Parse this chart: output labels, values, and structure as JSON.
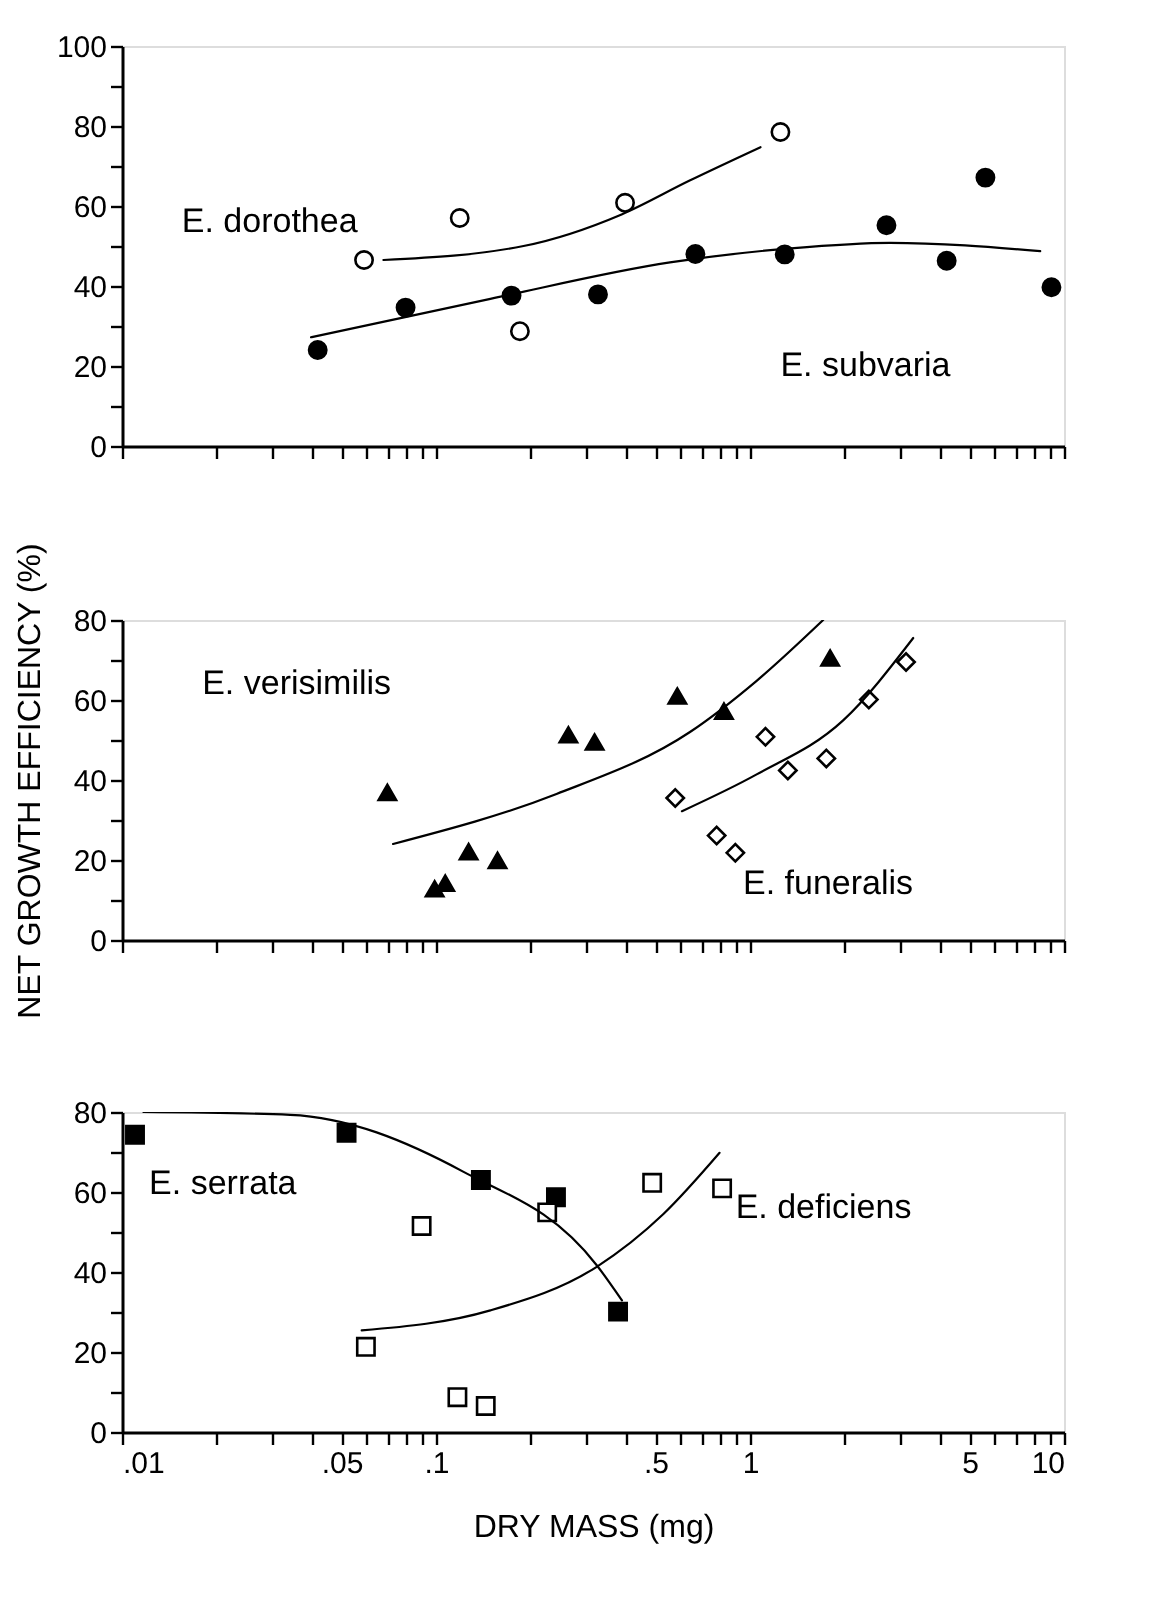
{
  "chart_data": [
    {
      "type": "scatter",
      "log": "x",
      "xlim": [
        0.01,
        10
      ],
      "ylim": [
        0,
        100
      ],
      "tick_labels": "y",
      "grid": false,
      "xticks": [
        {
          "value": 0.01,
          "label": null
        },
        {
          "value": 0.02,
          "label": null
        },
        {
          "value": 0.03,
          "label": null
        },
        {
          "value": 0.04,
          "label": null
        },
        {
          "value": 0.05,
          "label": null
        },
        {
          "value": 0.06,
          "label": null
        },
        {
          "value": 0.07,
          "label": null
        },
        {
          "value": 0.08,
          "label": null
        },
        {
          "value": 0.09,
          "label": null
        },
        {
          "value": 0.1,
          "label": null
        },
        {
          "value": 0.2,
          "label": null
        },
        {
          "value": 0.3,
          "label": null
        },
        {
          "value": 0.4,
          "label": null
        },
        {
          "value": 0.5,
          "label": null
        },
        {
          "value": 0.6,
          "label": null
        },
        {
          "value": 0.7,
          "label": null
        },
        {
          "value": 0.8,
          "label": null
        },
        {
          "value": 0.9,
          "label": null
        },
        {
          "value": 1,
          "label": null
        },
        {
          "value": 2,
          "label": null
        },
        {
          "value": 3,
          "label": null
        },
        {
          "value": 4,
          "label": null
        },
        {
          "value": 5,
          "label": null
        },
        {
          "value": 6,
          "label": null
        },
        {
          "value": 7,
          "label": null
        },
        {
          "value": 8,
          "label": null
        },
        {
          "value": 9,
          "label": null
        },
        {
          "value": 10,
          "label": null
        }
      ],
      "yticks": [
        0,
        {
          "value": 10,
          "label": null
        },
        20,
        {
          "value": 30,
          "label": null
        },
        40,
        {
          "value": 50,
          "label": null
        },
        60,
        {
          "value": 70,
          "label": null
        },
        80,
        {
          "value": 90,
          "label": null
        },
        100
      ],
      "series": [
        {
          "name": "E. dorothea",
          "type": "scatter",
          "marker": "circle",
          "color": "#ffffff",
          "x": [
            0.059,
            0.119,
            0.185,
            0.4,
            1.25
          ],
          "values": [
            46.5,
            57,
            28.7,
            60.8,
            78.5
          ]
        },
        {
          "name": "E. subvaria",
          "type": "scatter",
          "marker": "circle",
          "color": "#000000",
          "x": [
            0.042,
            0.08,
            0.174,
            0.328,
            0.67,
            1.29,
            2.72,
            4.23,
            5.62,
            9.12
          ],
          "values": [
            24,
            34.6,
            37.6,
            37.9,
            48,
            47.9,
            55.2,
            46.3,
            67.1,
            39.7
          ]
        },
        {
          "type": "line",
          "marker": "none",
          "color": "#000000",
          "x": [
            0.068,
            0.19,
            0.39,
            0.64,
            1.08
          ],
          "values": [
            46.5,
            50,
            57.9,
            66.3,
            74.7
          ]
        },
        {
          "type": "line",
          "marker": "none",
          "color": "#000000",
          "x": [
            0.04,
            0.149,
            0.556,
            1.34,
            2.79,
            8.4
          ],
          "values": [
            27.2,
            36.8,
            45.9,
            49.4,
            50.8,
            48.7
          ]
        }
      ]
    },
    {
      "type": "scatter",
      "log": "x",
      "xlim": [
        0.01,
        10
      ],
      "ylim": [
        0,
        80
      ],
      "tick_labels": "y",
      "grid": false,
      "ylabel": "NET GROWTH EFFICIENCY (%)",
      "xticks": [
        {
          "value": 0.01,
          "label": null
        },
        {
          "value": 0.02,
          "label": null
        },
        {
          "value": 0.03,
          "label": null
        },
        {
          "value": 0.04,
          "label": null
        },
        {
          "value": 0.05,
          "label": null
        },
        {
          "value": 0.06,
          "label": null
        },
        {
          "value": 0.07,
          "label": null
        },
        {
          "value": 0.08,
          "label": null
        },
        {
          "value": 0.09,
          "label": null
        },
        {
          "value": 0.1,
          "label": null
        },
        {
          "value": 0.2,
          "label": null
        },
        {
          "value": 0.3,
          "label": null
        },
        {
          "value": 0.4,
          "label": null
        },
        {
          "value": 0.5,
          "label": null
        },
        {
          "value": 0.6,
          "label": null
        },
        {
          "value": 0.7,
          "label": null
        },
        {
          "value": 0.8,
          "label": null
        },
        {
          "value": 0.9,
          "label": null
        },
        {
          "value": 1,
          "label": null
        },
        {
          "value": 2,
          "label": null
        },
        {
          "value": 3,
          "label": null
        },
        {
          "value": 4,
          "label": null
        },
        {
          "value": 5,
          "label": null
        },
        {
          "value": 6,
          "label": null
        },
        {
          "value": 7,
          "label": null
        },
        {
          "value": 8,
          "label": null
        },
        {
          "value": 9,
          "label": null
        },
        {
          "value": 10,
          "label": null
        }
      ],
      "yticks": [
        0,
        {
          "value": 10,
          "label": null
        },
        20,
        {
          "value": 30,
          "label": null
        },
        40,
        {
          "value": 50,
          "label": null
        },
        60,
        {
          "value": 70,
          "label": null
        },
        80
      ],
      "series": [
        {
          "name": "E. verisimilis",
          "type": "scatter",
          "marker": "triangle",
          "color": "#000000",
          "x": [
            0.07,
            0.099,
            0.107,
            0.127,
            0.157,
            0.264,
            0.32,
            0.587,
            0.826,
            1.8
          ],
          "values": [
            36.9,
            12.8,
            14.2,
            22.1,
            19.9,
            51.3,
            49.5,
            61,
            57.2,
            70.5
          ]
        },
        {
          "name": "E. funeralis",
          "type": "scatter",
          "marker": "diamond",
          "color": "#ffffff",
          "x": [
            0.578,
            0.783,
            0.898,
            1.12,
            1.32,
            1.75,
            2.39,
            3.14
          ],
          "values": [
            35.5,
            26.1,
            21.8,
            50.8,
            42.4,
            45.4,
            60.1,
            69.5
          ]
        },
        {
          "type": "line",
          "marker": "none",
          "color": "#000000",
          "x": [
            0.073,
            0.242,
            0.644,
            1.05,
            1.71
          ],
          "values": [
            24,
            36.5,
            52,
            64.8,
            80
          ]
        },
        {
          "type": "line",
          "marker": "none",
          "color": "#000000",
          "x": [
            0.607,
            1.05,
            1.98,
            3.31
          ],
          "values": [
            32.2,
            41.4,
            54.9,
            75.5
          ]
        }
      ]
    },
    {
      "type": "scatter",
      "log": "x",
      "xlim": [
        0.01,
        10
      ],
      "ylim": [
        0,
        80
      ],
      "grid": false,
      "xlabel": "DRY MASS (mg)",
      "xticks": [
        {
          "value": 0.01,
          "label": ".01"
        },
        {
          "value": 0.02,
          "label": null
        },
        {
          "value": 0.03,
          "label": null
        },
        {
          "value": 0.04,
          "label": null
        },
        {
          "value": 0.05,
          "label": ".05"
        },
        {
          "value": 0.06,
          "label": null
        },
        {
          "value": 0.07,
          "label": null
        },
        {
          "value": 0.08,
          "label": null
        },
        {
          "value": 0.09,
          "label": null
        },
        {
          "value": 0.1,
          "label": ".1"
        },
        {
          "value": 0.2,
          "label": null
        },
        {
          "value": 0.3,
          "label": null
        },
        {
          "value": 0.4,
          "label": null
        },
        {
          "value": 0.5,
          "label": ".5"
        },
        {
          "value": 0.6,
          "label": null
        },
        {
          "value": 0.7,
          "label": null
        },
        {
          "value": 0.8,
          "label": null
        },
        {
          "value": 0.9,
          "label": null
        },
        1,
        {
          "value": 2,
          "label": null
        },
        {
          "value": 3,
          "label": null
        },
        {
          "value": 4,
          "label": null
        },
        5,
        {
          "value": 6,
          "label": null
        },
        {
          "value": 7,
          "label": null
        },
        {
          "value": 8,
          "label": null
        },
        {
          "value": 9,
          "label": null
        },
        10
      ],
      "yticks": [
        0,
        {
          "value": 10,
          "label": null
        },
        20,
        {
          "value": 30,
          "label": null
        },
        40,
        {
          "value": 50,
          "label": null
        },
        60,
        {
          "value": 70,
          "label": null
        },
        80
      ],
      "series": [
        {
          "name": "E. serrata",
          "type": "scatter",
          "marker": "square",
          "color": "#000000",
          "x": [
            0.011,
            0.0519,
            0.139,
            0.241,
            0.38
          ],
          "values": [
            74.3,
            74.8,
            63,
            58.7,
            30.1
          ]
        },
        {
          "name": "E. deficiens",
          "type": "scatter",
          "marker": "square",
          "color": "#ffffff",
          "x": [
            0.0598,
            0.09,
            0.117,
            0.144,
            0.226,
            0.488,
            0.815
          ],
          "values": [
            21.3,
            51.5,
            8.7,
            6.5,
            54.9,
            62.3,
            60.9
          ]
        },
        {
          "type": "line",
          "marker": "none",
          "color": "#000000",
          "x": [
            0.0117,
            0.0343,
            0.122,
            0.325,
            0.391
          ],
          "values": [
            80,
            79.3,
            65.1,
            41.7,
            32.9
          ]
        },
        {
          "type": "line",
          "marker": "none",
          "color": "#000000",
          "x": [
            0.058,
            0.149,
            0.325,
            0.53,
            0.8
          ],
          "values": [
            25.4,
            30.4,
            41.3,
            54.5,
            69.8
          ]
        }
      ]
    }
  ]
}
